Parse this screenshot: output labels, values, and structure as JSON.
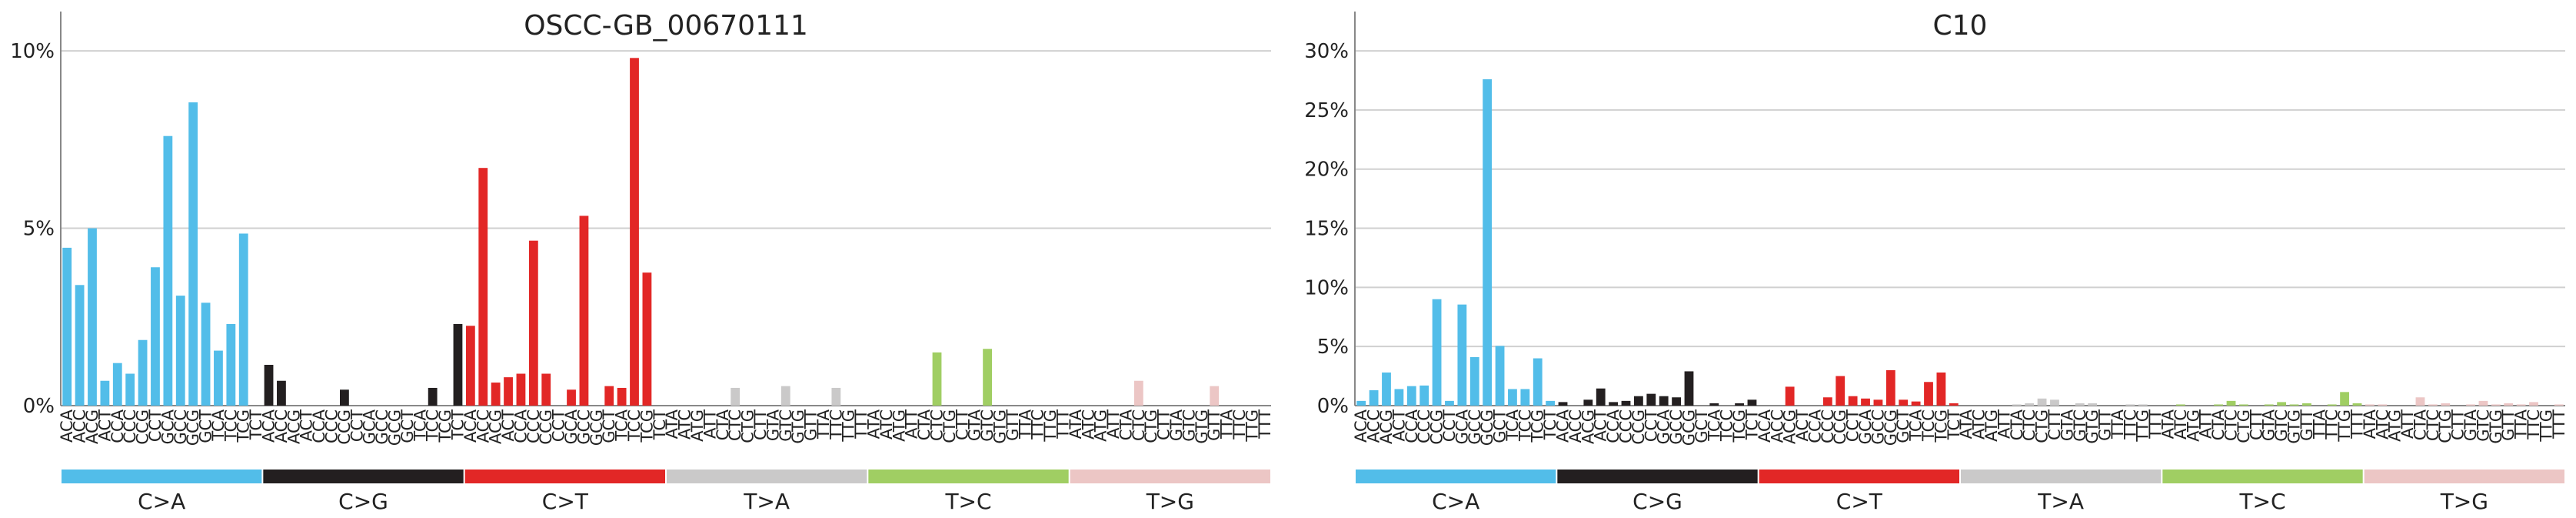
{
  "colors": {
    "C>A": "#52bde9",
    "C>G": "#231f20",
    "C>T": "#e22726",
    "T>A": "#cac9c9",
    "T>C": "#a0ce63",
    "T>G": "#ecc6c5",
    "grid": "#d0d0d0",
    "axis": "#888888"
  },
  "chart_data": [
    {
      "type": "bar",
      "title": "OSCC-GB_00670111",
      "ylim": [
        0,
        11
      ],
      "yticks": [
        0,
        5,
        10
      ],
      "ytick_labels": [
        "0%",
        "5%",
        "10%"
      ],
      "grid": true,
      "groups": [
        "C>A",
        "C>G",
        "C>T",
        "T>A",
        "T>C",
        "T>G"
      ],
      "categories": [
        "ACA",
        "ACC",
        "ACG",
        "ACT",
        "CCA",
        "CCC",
        "CCG",
        "CCT",
        "GCA",
        "GCC",
        "GCG",
        "GCT",
        "TCA",
        "TCC",
        "TCG",
        "TCT",
        "ACA",
        "ACC",
        "ACG",
        "ACT",
        "CCA",
        "CCC",
        "CCG",
        "CCT",
        "GCA",
        "GCC",
        "GCG",
        "GCT",
        "TCA",
        "TCC",
        "TCG",
        "TCT",
        "ACA",
        "ACC",
        "ACG",
        "ACT",
        "CCA",
        "CCC",
        "CCG",
        "CCT",
        "GCA",
        "GCC",
        "GCG",
        "GCT",
        "TCA",
        "TCC",
        "TCG",
        "TCT",
        "ATA",
        "ATC",
        "ATG",
        "ATT",
        "CTA",
        "CTC",
        "CTG",
        "CTT",
        "GTA",
        "GTC",
        "GTG",
        "GTT",
        "TTA",
        "TTC",
        "TTG",
        "TTT",
        "ATA",
        "ATC",
        "ATG",
        "ATT",
        "CTA",
        "CTC",
        "CTG",
        "CTT",
        "GTA",
        "GTC",
        "GTG",
        "GTT",
        "TTA",
        "TTC",
        "TTG",
        "TTT",
        "ATA",
        "ATC",
        "ATG",
        "ATT",
        "CTA",
        "CTC",
        "CTG",
        "CTT",
        "GTA",
        "GTC",
        "GTG",
        "GTT",
        "TTA",
        "TTC",
        "TTG",
        "TTT"
      ],
      "values": [
        4.45,
        3.4,
        5.0,
        0.7,
        1.2,
        0.9,
        1.85,
        3.9,
        7.6,
        3.1,
        8.55,
        2.9,
        1.55,
        2.3,
        4.85,
        0,
        1.15,
        0.7,
        0,
        0,
        0,
        0,
        0.45,
        0,
        0,
        0,
        0,
        0,
        0,
        0.5,
        0,
        2.3,
        2.25,
        6.7,
        0.65,
        0.8,
        0.9,
        4.65,
        0.9,
        0,
        0.45,
        5.35,
        0,
        0.55,
        0.5,
        9.8,
        3.75,
        0,
        0,
        0,
        0,
        0,
        0,
        0.5,
        0,
        0,
        0,
        0.55,
        0,
        0,
        0,
        0.5,
        0,
        0,
        0,
        0,
        0,
        0,
        0,
        1.5,
        0,
        0,
        0,
        1.6,
        0,
        0,
        0,
        0,
        0,
        0,
        0,
        0,
        0,
        0,
        0,
        0.7,
        0,
        0,
        0,
        0,
        0,
        0.55,
        0,
        0,
        0,
        0
      ]
    },
    {
      "type": "bar",
      "title": "C10",
      "ylim": [
        0,
        33
      ],
      "yticks": [
        0,
        5,
        10,
        15,
        20,
        25,
        30
      ],
      "ytick_labels": [
        "0%",
        "5%",
        "10%",
        "15%",
        "20%",
        "25%",
        "30%"
      ],
      "grid": true,
      "groups": [
        "C>A",
        "C>G",
        "C>T",
        "T>A",
        "T>C",
        "T>G"
      ],
      "categories": [
        "ACA",
        "ACC",
        "ACG",
        "ACT",
        "CCA",
        "CCC",
        "CCG",
        "CCT",
        "GCA",
        "GCC",
        "GCG",
        "GCT",
        "TCA",
        "TCC",
        "TCG",
        "TCT",
        "ACA",
        "ACC",
        "ACG",
        "ACT",
        "CCA",
        "CCC",
        "CCG",
        "CCT",
        "GCA",
        "GCC",
        "GCG",
        "GCT",
        "TCA",
        "TCC",
        "TCG",
        "TCT",
        "ACA",
        "ACC",
        "ACG",
        "ACT",
        "CCA",
        "CCC",
        "CCG",
        "CCT",
        "GCA",
        "GCC",
        "GCG",
        "GCT",
        "TCA",
        "TCC",
        "TCG",
        "TCT",
        "ATA",
        "ATC",
        "ATG",
        "ATT",
        "CTA",
        "CTC",
        "CTG",
        "CTT",
        "GTA",
        "GTC",
        "GTG",
        "GTT",
        "TTA",
        "TTC",
        "TTG",
        "TTT",
        "ATA",
        "ATC",
        "ATG",
        "ATT",
        "CTA",
        "CTC",
        "CTG",
        "CTT",
        "GTA",
        "GTC",
        "GTG",
        "GTT",
        "TTA",
        "TTC",
        "TTG",
        "TTT",
        "ATA",
        "ATC",
        "ATG",
        "ATT",
        "CTA",
        "CTC",
        "CTG",
        "CTT",
        "GTA",
        "GTC",
        "GTG",
        "GTT",
        "TTA",
        "TTC",
        "TTG",
        "TTT"
      ],
      "values": [
        0.4,
        1.3,
        2.8,
        1.4,
        1.65,
        1.7,
        9.0,
        0.4,
        8.55,
        4.1,
        27.6,
        5.05,
        1.4,
        1.4,
        4.0,
        0.4,
        0.3,
        0,
        0.5,
        1.45,
        0.3,
        0.4,
        0.8,
        1.0,
        0.8,
        0.7,
        2.9,
        0,
        0.2,
        0,
        0.2,
        0.5,
        0,
        0,
        1.6,
        0,
        0,
        0.7,
        2.5,
        0.8,
        0.6,
        0.5,
        3.0,
        0.5,
        0.35,
        2.0,
        2.8,
        0.2,
        0,
        0,
        0,
        0,
        0.1,
        0.2,
        0.6,
        0.5,
        0,
        0.2,
        0.2,
        0,
        0,
        0.1,
        0.1,
        0,
        0,
        0.1,
        0,
        0,
        0.1,
        0.4,
        0.1,
        0,
        0.1,
        0.3,
        0.1,
        0.2,
        0,
        0.1,
        1.15,
        0.2,
        0.1,
        0.1,
        0,
        0,
        0.7,
        0.1,
        0.2,
        0,
        0.1,
        0.4,
        0.1,
        0.2,
        0.1,
        0.3,
        0,
        0.1
      ]
    }
  ]
}
